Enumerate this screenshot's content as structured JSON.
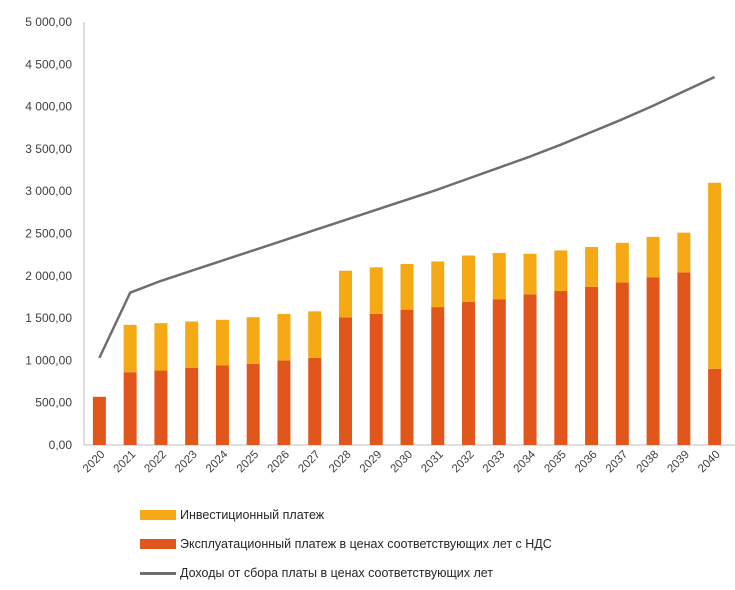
{
  "chart_data": {
    "type": "bar",
    "stacked": true,
    "categories": [
      "2020",
      "2021",
      "2022",
      "2023",
      "2024",
      "2025",
      "2026",
      "2027",
      "2028",
      "2029",
      "2030",
      "2031",
      "2032",
      "2033",
      "2034",
      "2035",
      "2036",
      "2037",
      "2038",
      "2039",
      "2040"
    ],
    "series": [
      {
        "name": "Эксплуатационный платеж в ценах соответствующих лет с НДС",
        "kind": "bar",
        "color": "#E0561B",
        "values": [
          570,
          860,
          880,
          910,
          940,
          960,
          1000,
          1030,
          1510,
          1550,
          1600,
          1630,
          1690,
          1720,
          1780,
          1820,
          1870,
          1920,
          1980,
          2040,
          900
        ]
      },
      {
        "name": "Инвестиционный платеж",
        "kind": "bar",
        "color": "#F5A915",
        "values": [
          0,
          560,
          560,
          550,
          540,
          550,
          550,
          550,
          550,
          550,
          540,
          540,
          550,
          550,
          480,
          480,
          470,
          470,
          480,
          470,
          2200
        ]
      },
      {
        "name": "Доходы от сбора платы в ценах соответствующих лет",
        "kind": "line",
        "color": "#6E6E6E",
        "values": [
          1030,
          1800,
          1940,
          2060,
          2180,
          2300,
          2420,
          2540,
          2660,
          2780,
          2900,
          3020,
          3150,
          3280,
          3410,
          3550,
          3700,
          3850,
          4010,
          4180,
          4350
        ]
      }
    ],
    "yticks": [
      "0,00",
      "500,00",
      "1 000,00",
      "1 500,00",
      "2 000,00",
      "2 500,00",
      "3 000,00",
      "3 500,00",
      "4 000,00",
      "4 500,00",
      "5 000,00"
    ],
    "ylim": [
      0,
      5000
    ],
    "grid": false,
    "legend_position": "bottom",
    "legend": [
      "Инвестиционный платеж",
      "Эксплуатационный платеж в ценах соответствующих лет с НДС",
      "Доходы от сбора платы в ценах соответствующих лет"
    ]
  }
}
